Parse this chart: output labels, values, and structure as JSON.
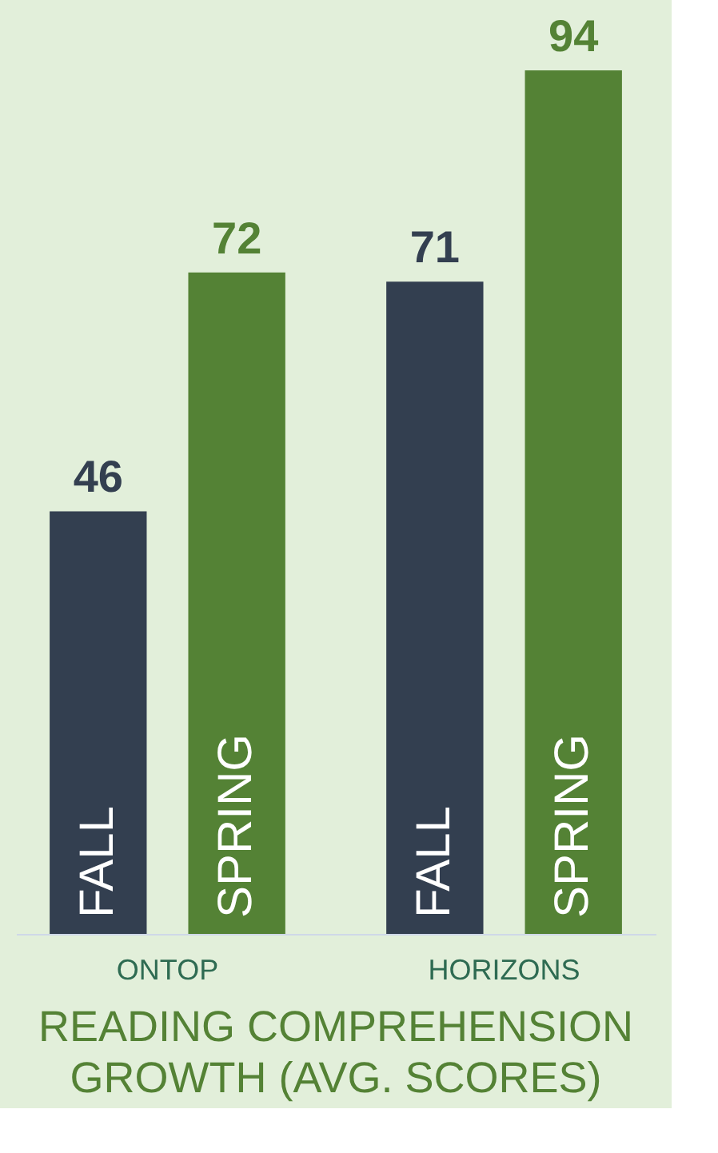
{
  "chart_data": {
    "type": "bar",
    "title": "READING COMPREHENSION GROWTH (AVG. SCORES)",
    "categories": [
      "ONTOP",
      "HORIZONS"
    ],
    "series": [
      {
        "name": "FALL",
        "color": "#333f50",
        "values": [
          46,
          71
        ]
      },
      {
        "name": "SPRING",
        "color": "#548235",
        "values": [
          72,
          94
        ]
      }
    ],
    "data_labels": true,
    "legend": false,
    "grid": false,
    "tick_labels": "x"
  }
}
